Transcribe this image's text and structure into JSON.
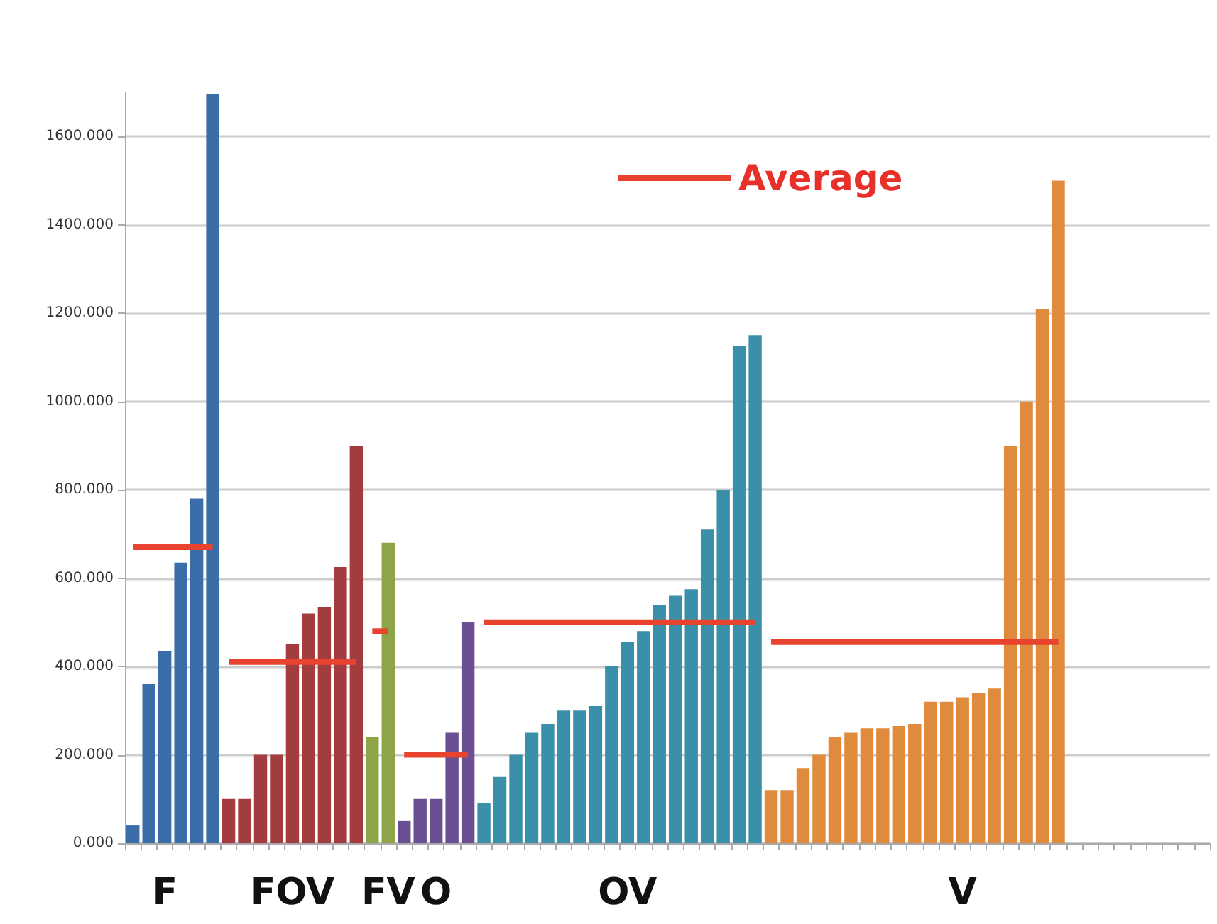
{
  "chart_data": {
    "type": "bar",
    "categories": [
      null,
      null,
      "F",
      null,
      null,
      null,
      null,
      null,
      null,
      null,
      "FOV",
      null,
      null,
      null,
      null,
      null,
      "FV",
      null,
      null,
      "O",
      null,
      null,
      null,
      null,
      null,
      null,
      null,
      null,
      null,
      null,
      null,
      "OV",
      null,
      null,
      null,
      null,
      null,
      null,
      null,
      null,
      null,
      null,
      null,
      null,
      null,
      null,
      null,
      null,
      null,
      null,
      null,
      null,
      "V",
      null,
      null,
      null,
      null,
      null,
      null,
      null,
      null,
      null,
      null,
      null,
      null,
      null,
      null,
      null
    ],
    "series": [
      {
        "color": "#3b6ea8",
        "values": [
          40,
          360,
          435,
          635,
          780,
          1695,
          null,
          null,
          null,
          null,
          null,
          null,
          null,
          null,
          null,
          null,
          null,
          null,
          null,
          null,
          null,
          null,
          null,
          null,
          null,
          null,
          null,
          null,
          null,
          null,
          null,
          null,
          null,
          null,
          null,
          null,
          null,
          null,
          null,
          null,
          null,
          null,
          null,
          null,
          null,
          null,
          null,
          null,
          null,
          null,
          null,
          null,
          null,
          null,
          null,
          null,
          null,
          null,
          null,
          null,
          null,
          null,
          null,
          null,
          null,
          null,
          null,
          null
        ]
      },
      {
        "color": "#a33c3e",
        "values": [
          null,
          null,
          null,
          null,
          null,
          null,
          100,
          100,
          200,
          200,
          450,
          520,
          535,
          625,
          900,
          null,
          null,
          null,
          null,
          null,
          null,
          null,
          null,
          null,
          null,
          null,
          null,
          null,
          null,
          null,
          null,
          null,
          null,
          null,
          null,
          null,
          null,
          null,
          null,
          null,
          null,
          null,
          null,
          null,
          null,
          null,
          null,
          null,
          null,
          null,
          null,
          null,
          null,
          null,
          null,
          null,
          null,
          null,
          null,
          null,
          null,
          null,
          null,
          null,
          null,
          null,
          null,
          null
        ]
      },
      {
        "color": "#8ea547",
        "values": [
          null,
          null,
          null,
          null,
          null,
          null,
          null,
          null,
          null,
          null,
          null,
          null,
          null,
          null,
          null,
          240,
          680,
          null,
          null,
          null,
          null,
          null,
          null,
          null,
          null,
          null,
          null,
          null,
          null,
          null,
          null,
          null,
          null,
          null,
          null,
          null,
          null,
          null,
          null,
          null,
          null,
          null,
          null,
          null,
          null,
          null,
          null,
          null,
          null,
          null,
          null,
          null,
          null,
          null,
          null,
          null,
          null,
          null,
          null,
          null,
          null,
          null,
          null,
          null,
          null,
          null,
          null,
          null
        ]
      },
      {
        "color": "#6b4f94",
        "values": [
          null,
          null,
          null,
          null,
          null,
          null,
          null,
          null,
          null,
          null,
          null,
          null,
          null,
          null,
          null,
          null,
          null,
          50,
          100,
          100,
          250,
          500,
          null,
          null,
          null,
          null,
          null,
          null,
          null,
          null,
          null,
          null,
          null,
          null,
          null,
          null,
          null,
          null,
          null,
          null,
          null,
          null,
          null,
          null,
          null,
          null,
          null,
          null,
          null,
          null,
          null,
          null,
          null,
          null,
          null,
          null,
          null,
          null,
          null,
          null,
          null,
          null,
          null,
          null,
          null,
          null,
          null,
          null
        ]
      },
      {
        "color": "#3a90a9",
        "values": [
          null,
          null,
          null,
          null,
          null,
          null,
          null,
          null,
          null,
          null,
          null,
          null,
          null,
          null,
          null,
          null,
          null,
          null,
          null,
          null,
          null,
          null,
          90,
          150,
          200,
          250,
          270,
          300,
          300,
          310,
          400,
          455,
          480,
          540,
          560,
          575,
          710,
          800,
          1125,
          1150,
          null,
          null,
          null,
          null,
          null,
          null,
          null,
          null,
          null,
          null,
          null,
          null,
          null,
          null,
          null,
          null,
          null,
          null,
          null,
          null,
          null,
          null,
          null,
          null,
          null,
          null,
          null,
          null
        ]
      },
      {
        "color": "#e08a3d",
        "values": [
          null,
          null,
          null,
          null,
          null,
          null,
          null,
          null,
          null,
          null,
          null,
          null,
          null,
          null,
          null,
          null,
          null,
          null,
          null,
          null,
          null,
          null,
          null,
          null,
          null,
          null,
          null,
          null,
          null,
          null,
          null,
          null,
          null,
          null,
          null,
          null,
          null,
          null,
          null,
          null,
          120,
          120,
          170,
          200,
          240,
          250,
          260,
          260,
          265,
          270,
          320,
          320,
          330,
          340,
          350,
          900,
          1000,
          1210,
          1500,
          null,
          null,
          null,
          null,
          null,
          null,
          null,
          null,
          null
        ]
      },
      {
        "name": "Average",
        "type": "line",
        "color": "#e8432e",
        "values": [
          670,
          670,
          670,
          670,
          670,
          670,
          null,
          null,
          null,
          null,
          null,
          null,
          null,
          null,
          null,
          null,
          null,
          null,
          null,
          null,
          null,
          null,
          null,
          null,
          null,
          null,
          null,
          null,
          null,
          null,
          null,
          null,
          null,
          null,
          null,
          null,
          null,
          null,
          null,
          null,
          null,
          null,
          null,
          null,
          null,
          null,
          null,
          null,
          null,
          null,
          null,
          null,
          null,
          null,
          null,
          null,
          null,
          null,
          null,
          null,
          null,
          null,
          null,
          null,
          null,
          null,
          null,
          null
        ]
      },
      {
        "type": "line",
        "color": "#e8432e",
        "values": [
          null,
          null,
          null,
          null,
          null,
          null,
          410,
          410,
          410,
          410,
          410,
          410,
          410,
          410,
          410,
          null,
          null,
          null,
          null,
          null,
          null,
          null,
          null,
          null,
          null,
          null,
          null,
          null,
          null,
          null,
          null,
          null,
          null,
          null,
          null,
          null,
          null,
          null,
          null,
          null,
          null,
          null,
          null,
          null,
          null,
          null,
          null,
          null,
          null,
          null,
          null,
          null,
          null,
          null,
          null,
          null,
          null,
          null,
          null,
          null,
          null,
          null,
          null,
          null,
          null,
          null,
          null,
          null
        ]
      },
      {
        "type": "line",
        "color": "#e8432e",
        "values": [
          null,
          null,
          null,
          null,
          null,
          null,
          null,
          null,
          null,
          null,
          null,
          null,
          null,
          null,
          null,
          480,
          480,
          null,
          null,
          null,
          null,
          null,
          null,
          null,
          null,
          null,
          null,
          null,
          null,
          null,
          null,
          null,
          null,
          null,
          null,
          null,
          null,
          null,
          null,
          null,
          null,
          null,
          null,
          null,
          null,
          null,
          null,
          null,
          null,
          null,
          null,
          null,
          null,
          null,
          null,
          null,
          null,
          null,
          null,
          null,
          null,
          null,
          null,
          null,
          null,
          null,
          null,
          null
        ]
      },
      {
        "type": "line",
        "color": "#e8432e",
        "values": [
          null,
          null,
          null,
          null,
          null,
          null,
          null,
          null,
          null,
          null,
          null,
          null,
          null,
          null,
          null,
          null,
          null,
          200,
          200,
          200,
          200,
          200,
          null,
          null,
          null,
          null,
          null,
          null,
          null,
          null,
          null,
          null,
          null,
          null,
          null,
          null,
          null,
          null,
          null,
          null,
          null,
          null,
          null,
          null,
          null,
          null,
          null,
          null,
          null,
          null,
          null,
          null,
          null,
          null,
          null,
          null,
          null,
          null,
          null,
          null,
          null,
          null,
          null,
          null,
          null,
          null,
          null,
          null
        ]
      },
      {
        "type": "line",
        "color": "#e8432e",
        "values": [
          null,
          null,
          null,
          null,
          null,
          null,
          null,
          null,
          null,
          null,
          null,
          null,
          null,
          null,
          null,
          null,
          null,
          null,
          null,
          null,
          null,
          null,
          500,
          500,
          500,
          500,
          500,
          500,
          500,
          500,
          500,
          500,
          500,
          500,
          500,
          500,
          500,
          500,
          500,
          500,
          null,
          null,
          null,
          null,
          null,
          null,
          null,
          null,
          null,
          null,
          null,
          null,
          null,
          null,
          null,
          null,
          null,
          null,
          null,
          null,
          null,
          null,
          null,
          null,
          null,
          null,
          null,
          null
        ]
      },
      {
        "type": "line",
        "color": "#e8432e",
        "values": [
          null,
          null,
          null,
          null,
          null,
          null,
          null,
          null,
          null,
          null,
          null,
          null,
          null,
          null,
          null,
          null,
          null,
          null,
          null,
          null,
          null,
          null,
          null,
          null,
          null,
          null,
          null,
          null,
          null,
          null,
          null,
          null,
          null,
          null,
          null,
          null,
          null,
          null,
          null,
          null,
          455,
          455,
          455,
          455,
          455,
          455,
          455,
          455,
          455,
          455,
          455,
          455,
          455,
          455,
          455,
          455,
          455,
          455,
          455,
          null,
          null,
          null,
          null,
          null,
          null,
          null,
          null,
          null
        ]
      }
    ],
    "ylim": [
      0,
      1700
    ],
    "yticks": [
      {
        "value": 0,
        "label": "0.000"
      },
      {
        "value": 200,
        "label": "200.000"
      },
      {
        "value": 400,
        "label": "400.000"
      },
      {
        "value": 600,
        "label": "600.000"
      },
      {
        "value": 800,
        "label": "800.000"
      },
      {
        "value": 1000,
        "label": "1000.000"
      },
      {
        "value": 1200,
        "label": "1200.000"
      },
      {
        "value": 1400,
        "label": "1400.000"
      },
      {
        "value": 1600,
        "label": "1600.000"
      }
    ],
    "grid": "y",
    "legend": "top",
    "marker": "none"
  }
}
